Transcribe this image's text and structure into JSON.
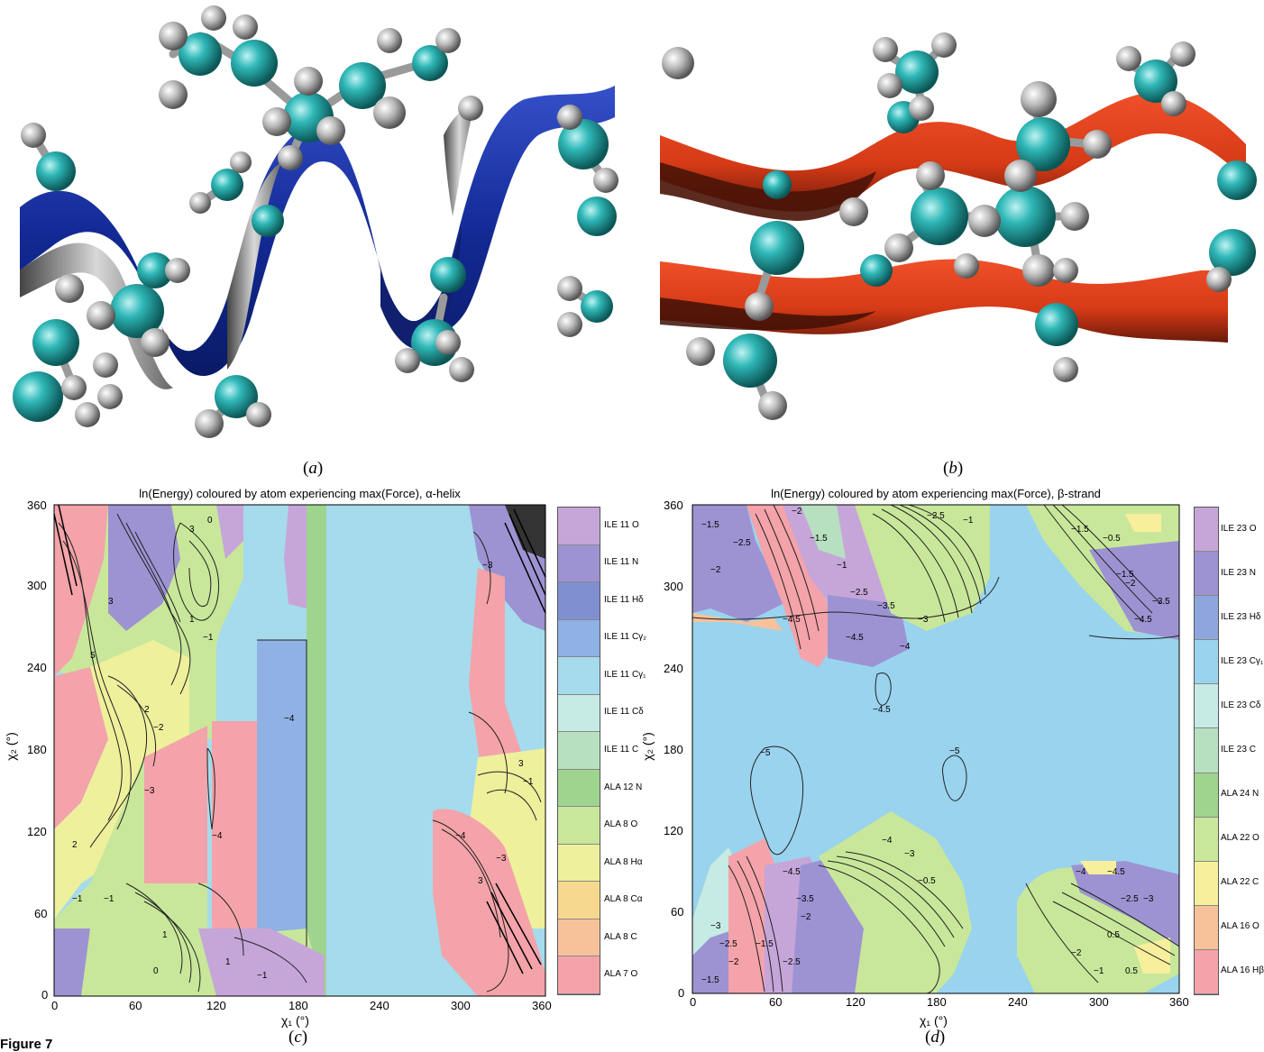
{
  "figure_label": "Figure 7",
  "panels": {
    "a": {
      "caption": "a"
    },
    "b": {
      "caption": "b"
    },
    "c": {
      "caption": "c",
      "title": "ln(Energy) coloured by atom experiencing max(Force),  α-helix",
      "xlabel": "χ₁ (°)",
      "ylabel": "χ₂ (°)",
      "xticks": [
        "0",
        "60",
        "120",
        "180",
        "240",
        "300",
        "360"
      ],
      "yticks": [
        "0",
        "60",
        "120",
        "180",
        "240",
        "300",
        "360"
      ],
      "legend": [
        {
          "label": "ILE 11 O",
          "color": "#c6a6d9"
        },
        {
          "label": "ILE 11 N",
          "color": "#9d93d2"
        },
        {
          "label": "ILE 11 Hδ",
          "color": "#7f8fd0"
        },
        {
          "label": "ILE 11 Cγ₂",
          "color": "#8fb1e3"
        },
        {
          "label": "ILE 11 Cγ₁",
          "color": "#a5dbec"
        },
        {
          "label": "ILE 11 Cδ",
          "color": "#c5ebe4"
        },
        {
          "label": "ILE 11 C",
          "color": "#b7e0c0"
        },
        {
          "label": "ALA 12 N",
          "color": "#9fd48f"
        },
        {
          "label": "ALA 8 O",
          "color": "#c8e79a"
        },
        {
          "label": "ALA 8 Hα",
          "color": "#eef09c"
        },
        {
          "label": "ALA 8 Cα",
          "color": "#f6d98f"
        },
        {
          "label": "ALA 8 C",
          "color": "#f7c29a"
        },
        {
          "label": "ALA 7 O",
          "color": "#f3a3a9"
        }
      ]
    },
    "d": {
      "caption": "d",
      "title": "ln(Energy) coloured by atom experiencing max(Force),  β-strand",
      "xlabel": "χ₁ (°)",
      "ylabel": "χ₂ (°)",
      "xticks": [
        "0",
        "60",
        "120",
        "180",
        "240",
        "300",
        "360"
      ],
      "yticks": [
        "0",
        "60",
        "120",
        "180",
        "240",
        "300",
        "360"
      ],
      "legend": [
        {
          "label": "ILE 23 O",
          "color": "#c6a6d9"
        },
        {
          "label": "ILE 23 N",
          "color": "#9d93d2"
        },
        {
          "label": "ILE 23 Hδ",
          "color": "#8fa6dc"
        },
        {
          "label": "ILE 23 Cγ₁",
          "color": "#9ad3ee"
        },
        {
          "label": "ILE 23 Cδ",
          "color": "#c5ebe4"
        },
        {
          "label": "ILE 23 C",
          "color": "#b7e0c0"
        },
        {
          "label": "ALA 24 N",
          "color": "#9fd48f"
        },
        {
          "label": "ALA 22 O",
          "color": "#c8e79a"
        },
        {
          "label": "ALA 22 C",
          "color": "#f7ef9c"
        },
        {
          "label": "ALA 16 O",
          "color": "#f7c29a"
        },
        {
          "label": "ALA 16 Hβ",
          "color": "#f3a3a9"
        }
      ]
    }
  }
}
